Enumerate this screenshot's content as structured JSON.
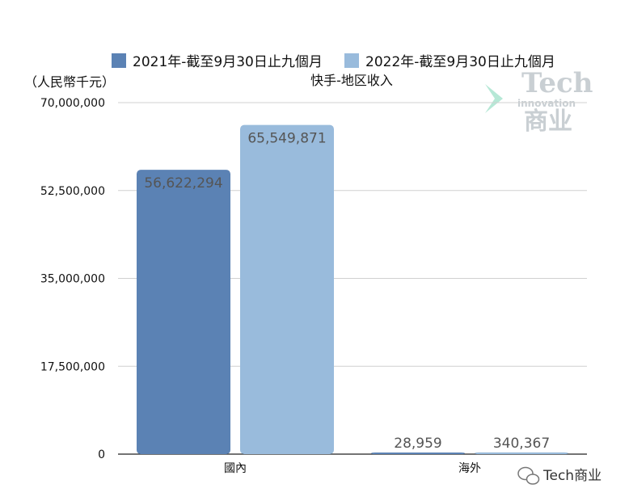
{
  "chart_data": {
    "type": "bar",
    "title": "快手-地区收入",
    "unit_label": "（人民幣千元）",
    "categories": [
      "國內",
      "海外"
    ],
    "series": [
      {
        "name": "2021年-截至9月30日止九個月",
        "color": "#5b82b4",
        "values": [
          56622294,
          28959
        ],
        "labels": [
          "56,622,294",
          "28,959"
        ]
      },
      {
        "name": "2022年-截至9月30日止九個月",
        "color": "#99bbdc",
        "values": [
          65549871,
          340367
        ],
        "labels": [
          "65,549,871",
          "340,367"
        ]
      }
    ],
    "ylim": [
      0,
      70000000
    ],
    "yticks": [
      0,
      17500000,
      35000000,
      52500000,
      70000000
    ],
    "ytick_labels": [
      "0",
      "17,500,000",
      "35,000,000",
      "52,500,000",
      "70,000,000"
    ],
    "grid": true,
    "legend_position": "top"
  },
  "watermark": {
    "tech": "Tech",
    "innovation": "innovation",
    "cn": "商业",
    "color": "#c9cfd3",
    "accent_color": "#9ee0c8"
  },
  "footer": {
    "icon": "wechat-icon",
    "text": "Tech商业"
  }
}
